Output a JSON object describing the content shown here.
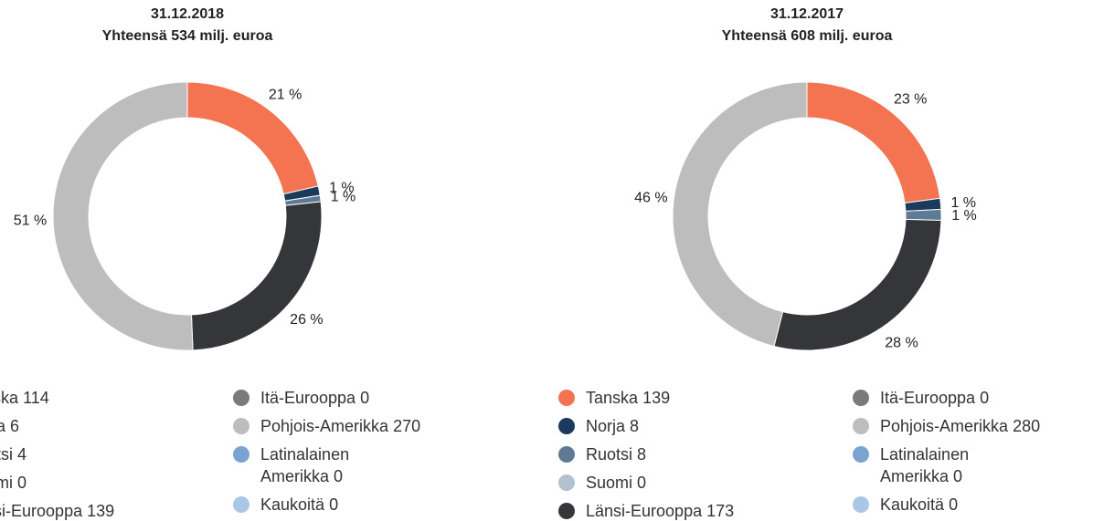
{
  "chart_data": [
    {
      "type": "donut",
      "title": "31.12.2018",
      "subtitle": "Yhteensä 534 milj. euroa",
      "categories": [
        "Tanska",
        "Norja",
        "Ruotsi",
        "Suomi",
        "Länsi-Eurooppa",
        "Itä-Eurooppa",
        "Pohjois-Amerikka",
        "Latinalainen Amerikka",
        "Kaukoitä"
      ],
      "values": [
        114,
        6,
        4,
        0,
        139,
        0,
        270,
        0,
        0
      ],
      "percentage_labels": [
        "21 %",
        "1 %",
        "1 %",
        null,
        "26 %",
        null,
        "51 %",
        null,
        null
      ],
      "colors": [
        "#f47452",
        "#1b3a5c",
        "#5f7a94",
        "#b3c1cf",
        "#35363a",
        "#7a7a7a",
        "#bdbdbe",
        "#7ba3d2",
        "#aac8e6"
      ]
    },
    {
      "type": "donut",
      "title": "31.12.2017",
      "subtitle": "Yhteensä 608 milj. euroa",
      "categories": [
        "Tanska",
        "Norja",
        "Ruotsi",
        "Suomi",
        "Länsi-Eurooppa",
        "Itä-Eurooppa",
        "Pohjois-Amerikka",
        "Latinalainen Amerikka",
        "Kaukoitä"
      ],
      "values": [
        139,
        8,
        8,
        0,
        173,
        0,
        280,
        0,
        0
      ],
      "percentage_labels": [
        "23 %",
        "1 %",
        "1 %",
        null,
        "28 %",
        null,
        "46 %",
        null,
        null
      ],
      "colors": [
        "#f47452",
        "#1b3a5c",
        "#5f7a94",
        "#b3c1cf",
        "#35363a",
        "#7a7a7a",
        "#bdbdbe",
        "#7ba3d2",
        "#aac8e6"
      ]
    }
  ]
}
